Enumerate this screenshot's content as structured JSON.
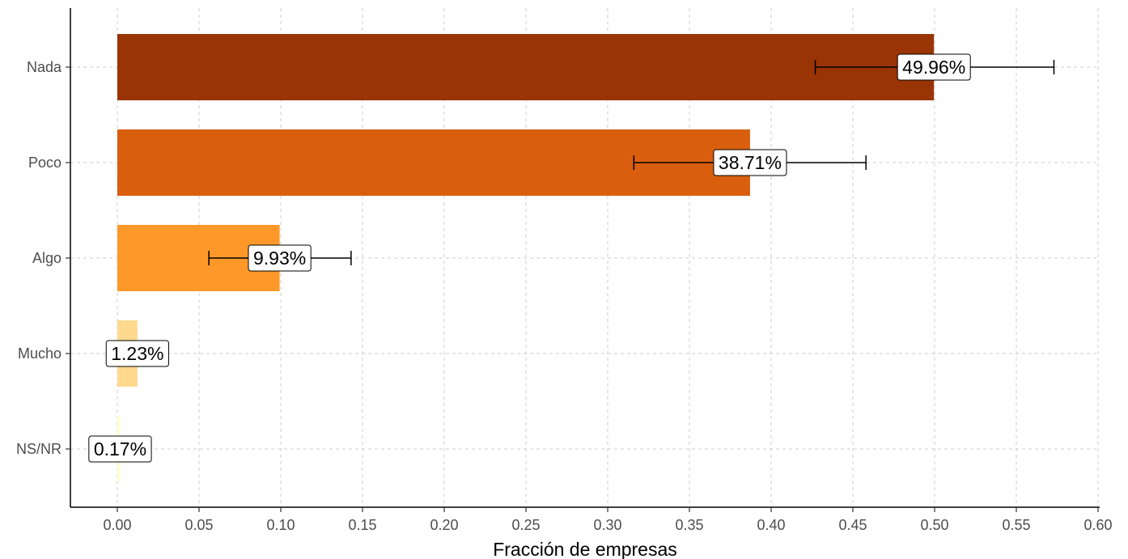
{
  "chart_data": {
    "type": "bar",
    "orientation": "horizontal",
    "title": "",
    "xlabel": "Fracción de empresas",
    "ylabel": "",
    "xlim": [
      0,
      0.6
    ],
    "x_ticks": [
      "0.00",
      "0.05",
      "0.10",
      "0.15",
      "0.20",
      "0.25",
      "0.30",
      "0.35",
      "0.40",
      "0.45",
      "0.50",
      "0.55",
      "0.60"
    ],
    "categories": [
      "Nada",
      "Poco",
      "Algo",
      "Mucho",
      "NS/NR"
    ],
    "values": [
      0.4996,
      0.3871,
      0.0993,
      0.0123,
      0.0017
    ],
    "labels": [
      "49.96%",
      "38.71%",
      "9.93%",
      "1.23%",
      "0.17%"
    ],
    "error_bars": [
      [
        0.427,
        0.573
      ],
      [
        0.316,
        0.458
      ],
      [
        0.056,
        0.143
      ],
      null,
      null
    ],
    "colors": [
      "#993404",
      "#d95f0e",
      "#fe9929",
      "#fed98e",
      "#ffffd4"
    ],
    "grid": true,
    "grid_style": "dashed",
    "legend": "none"
  }
}
